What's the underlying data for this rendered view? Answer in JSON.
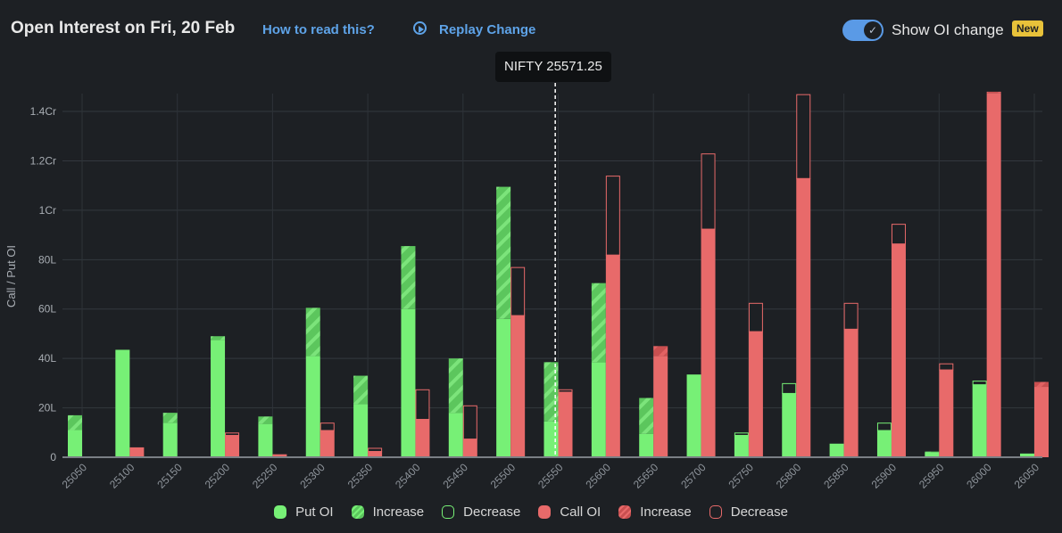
{
  "header": {
    "title": "Open Interest on Fri, 20 Feb",
    "how_to_read": "How to read this?",
    "replay": "Replay Change",
    "replay_icon": "play-circle-icon",
    "toggle_label": "Show OI change",
    "toggle_on": true,
    "badge": "New"
  },
  "tooltip": {
    "text": "NIFTY 25571.25",
    "spot": 25571.25
  },
  "colors": {
    "put": "#77f076",
    "put_hatch": "#5cc65d",
    "call": "#e86a6a",
    "call_hatch": "#c94f50",
    "background": "#1d2024",
    "accent": "#5ea3e8"
  },
  "legend": [
    {
      "label": "Put OI",
      "kind": "put-solid"
    },
    {
      "label": "Increase",
      "kind": "put-increase"
    },
    {
      "label": "Decrease",
      "kind": "put-decrease"
    },
    {
      "label": "Call OI",
      "kind": "call-solid"
    },
    {
      "label": "Increase",
      "kind": "call-increase"
    },
    {
      "label": "Decrease",
      "kind": "call-decrease"
    }
  ],
  "chart_data": {
    "type": "bar",
    "title": "",
    "ylabel": "Call / Put OI",
    "xlabel": "",
    "unit": "lakh",
    "ylim": [
      0,
      148
    ],
    "yticks": [
      {
        "v": 0,
        "label": "0"
      },
      {
        "v": 20,
        "label": "20L"
      },
      {
        "v": 40,
        "label": "40L"
      },
      {
        "v": 60,
        "label": "60L"
      },
      {
        "v": 80,
        "label": "80L"
      },
      {
        "v": 100,
        "label": "1Cr"
      },
      {
        "v": 120,
        "label": "1.2Cr"
      },
      {
        "v": 140,
        "label": "1.4Cr"
      }
    ],
    "grid": true,
    "legend_position": "bottom",
    "categories": [
      "25050",
      "25100",
      "25150",
      "25200",
      "25250",
      "25300",
      "25350",
      "25400",
      "25450",
      "25500",
      "25550",
      "25600",
      "25650",
      "25700",
      "25750",
      "25800",
      "25850",
      "25900",
      "25950",
      "26000",
      "26050"
    ],
    "series": [
      {
        "name": "Put OI",
        "values": [
          17,
          43.5,
          18,
          49,
          16.5,
          60.5,
          33,
          85.5,
          40,
          109.5,
          38.5,
          70.5,
          24,
          33.5,
          9,
          26,
          5.5,
          11,
          2.3,
          29.5,
          1.5
        ],
        "previous": [
          11,
          43.5,
          14,
          47.5,
          13.5,
          41,
          21.5,
          60,
          18,
          56,
          14.5,
          38.5,
          9.5,
          33.5,
          10,
          30,
          5.5,
          14,
          2,
          31,
          1.5
        ]
      },
      {
        "name": "Call OI",
        "values": [
          0.3,
          4,
          0.3,
          9,
          1.2,
          11,
          2.5,
          15.5,
          7.5,
          57.5,
          26.5,
          82,
          45,
          92.5,
          51,
          113,
          52,
          86.5,
          35.5,
          148,
          30.5
        ],
        "previous": [
          0.3,
          4,
          0.3,
          10,
          1.2,
          14,
          3.8,
          27.5,
          21,
          77,
          27.5,
          114,
          41,
          123,
          62.5,
          147,
          62.5,
          94.5,
          38,
          147.5,
          28.5
        ]
      }
    ]
  }
}
